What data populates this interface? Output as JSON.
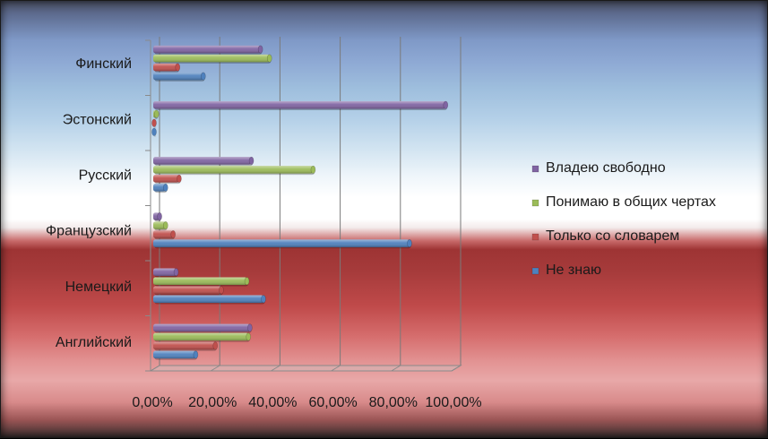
{
  "chart_data": {
    "type": "bar",
    "orientation": "horizontal",
    "categories": [
      "Финский",
      "Эстонский",
      "Русский",
      "Французский",
      "Немецкий",
      "Английский"
    ],
    "series": [
      {
        "name": "Владею свободно",
        "color": "#8064a2",
        "values": [
          36.5,
          98.0,
          33.5,
          3.0,
          8.5,
          33.0
        ]
      },
      {
        "name": "Понимаю в общих чертах",
        "color": "#9bbb59",
        "values": [
          39.5,
          2.0,
          54.0,
          5.0,
          32.0,
          32.5
        ]
      },
      {
        "name": "Только со словарем",
        "color": "#c0504d",
        "values": [
          9.0,
          0.5,
          9.5,
          7.5,
          23.5,
          21.5
        ]
      },
      {
        "name": "Не знаю",
        "color": "#4f81bd",
        "values": [
          17.5,
          1.0,
          5.0,
          86.0,
          37.5,
          15.0
        ]
      }
    ],
    "xlim": [
      0,
      100
    ],
    "x_ticks": [
      "0,00%",
      "20,00%",
      "40,00%",
      "60,00%",
      "80,00%",
      "100,00%"
    ],
    "grid": true,
    "legend_position": "right"
  }
}
